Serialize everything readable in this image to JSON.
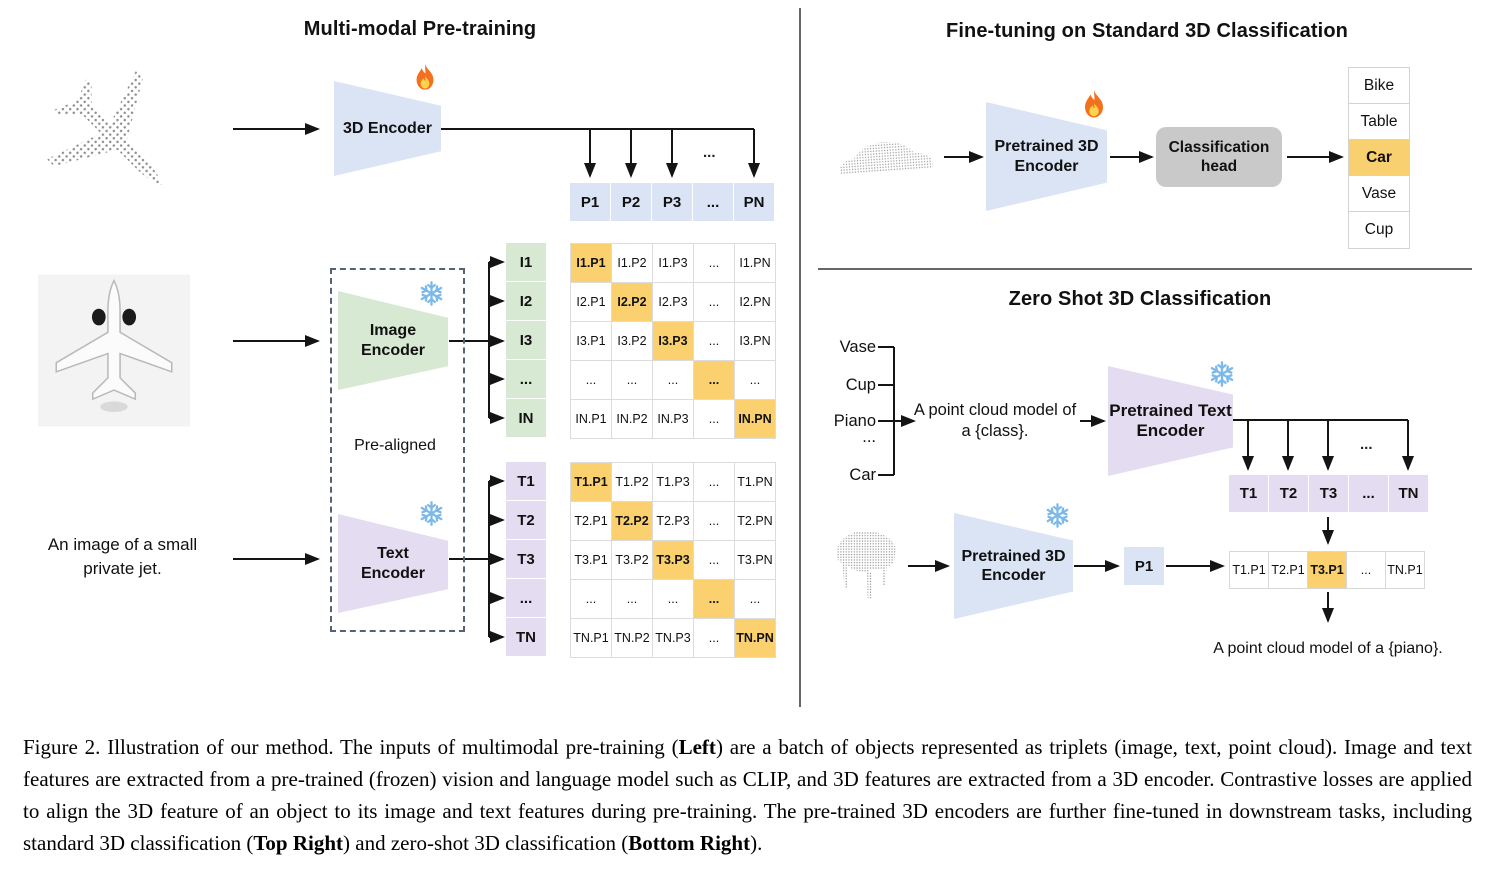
{
  "left": {
    "title": "Multi-modal Pre-training",
    "encoder_label": "3D Encoder",
    "image_encoder_label": "Image\nEncoder",
    "text_encoder_label": "Text\nEncoder",
    "pre_aligned": "Pre-aligned",
    "image_caption": "An image of a small\nprivate jet.",
    "dots": "...",
    "p_row": [
      "P1",
      "P2",
      "P3",
      "...",
      "PN"
    ],
    "i_labels": [
      "I1",
      "I2",
      "I3",
      "...",
      "IN"
    ],
    "t_labels": [
      "T1",
      "T2",
      "T3",
      "...",
      "TN"
    ],
    "i_matrix": [
      [
        "I1.P1",
        "I1.P2",
        "I1.P3",
        "...",
        "I1.PN"
      ],
      [
        "I2.P1",
        "I2.P2",
        "I2.P3",
        "...",
        "I2.PN"
      ],
      [
        "I3.P1",
        "I3.P2",
        "I3.P3",
        "...",
        "I3.PN"
      ],
      [
        "...",
        "...",
        "...",
        "...",
        "..."
      ],
      [
        "IN.P1",
        "IN.P2",
        "IN.P3",
        "...",
        "IN.PN"
      ]
    ],
    "t_matrix": [
      [
        "T1.P1",
        "T1.P2",
        "T1.P3",
        "...",
        "T1.PN"
      ],
      [
        "T2.P1",
        "T2.P2",
        "T2.P3",
        "...",
        "T2.PN"
      ],
      [
        "T3.P1",
        "T3.P2",
        "T3.P3",
        "...",
        "T3.PN"
      ],
      [
        "...",
        "...",
        "...",
        "...",
        "..."
      ],
      [
        "TN.P1",
        "TN.P2",
        "TN.P3",
        "...",
        "TN.PN"
      ]
    ]
  },
  "finetune": {
    "title": "Fine-tuning on Standard 3D Classification",
    "encoder_label": "Pretrained 3D\nEncoder",
    "head_label": "Classification\nhead",
    "classes": [
      "Bike",
      "Table",
      "Car",
      "Vase",
      "Cup"
    ],
    "predicted": "Car"
  },
  "zeroshot": {
    "title": "Zero Shot 3D Classification",
    "words": [
      "Vase",
      "Cup",
      "Piano",
      "...",
      "Car"
    ],
    "prompt": "A point cloud model of\na {class}.",
    "text_encoder_label": "Pretrained Text\nEncoder",
    "encoder_label": "Pretrained 3D\nEncoder",
    "t_row": [
      "T1",
      "T2",
      "T3",
      "...",
      "TN"
    ],
    "p_cell": "P1",
    "result_row": [
      "T1.P1",
      "T2.P1",
      "T3.P1",
      "...",
      "TN.P1"
    ],
    "highlight": "T3.P1",
    "result_caption": "A point cloud model of a {piano}.",
    "dots": "..."
  },
  "caption_segments": [
    {
      "text": "Figure 2. Illustration of our method. The inputs of multimodal pre-training (",
      "bold": false
    },
    {
      "text": "Left",
      "bold": true
    },
    {
      "text": ") are a batch of objects represented as triplets (image, text, point cloud). Image and text features are extracted from a pre-trained (frozen) vision and language model such as CLIP, and 3D features are extracted from a 3D encoder. Contrastive losses are applied to align the 3D feature of an object to its image and text features during pre-training. The pre-trained 3D encoders are further fine-tuned in downstream tasks, including standard 3D classification (",
      "bold": false
    },
    {
      "text": "Top Right",
      "bold": true
    },
    {
      "text": ") and zero-shot 3D classification (",
      "bold": false
    },
    {
      "text": "Bottom Right",
      "bold": true
    },
    {
      "text": ").",
      "bold": false
    }
  ],
  "colors": {
    "feature_blue": "#dae4f5",
    "feature_green": "#d7e8d3",
    "feature_purple": "#e4dcf0",
    "diagonal_highlight": "#fbd06e",
    "predicted_highlight": "#f8d06f",
    "head_gray": "#c9c9c9"
  }
}
